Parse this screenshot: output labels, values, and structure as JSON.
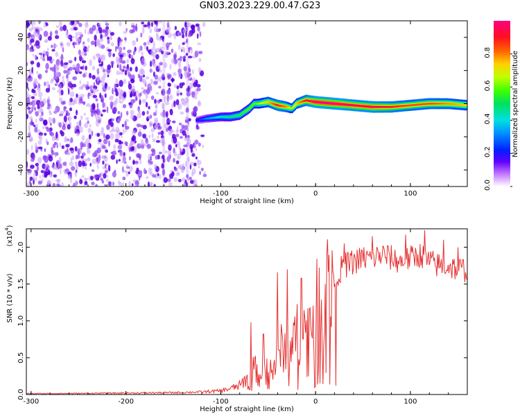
{
  "title": "GN03.2023.229.00.47.G23",
  "colors": {
    "snr_line": "#e53030",
    "axis": "#000000",
    "background": "#ffffff"
  },
  "chart_data": [
    {
      "type": "heatmap",
      "xlabel": "Height of straight line (km)",
      "ylabel": "Frequency (Hz)",
      "xlim": [
        -305,
        160
      ],
      "ylim": [
        -50,
        50
      ],
      "x_ticks": [
        -300,
        -200,
        -100,
        0,
        100
      ],
      "x_tick_labels": [
        "-300",
        "-200",
        "-100",
        "0",
        "100"
      ],
      "y_ticks": [
        -40,
        -20,
        0,
        20,
        40
      ],
      "y_tick_labels": [
        "-40",
        "-20",
        "0",
        "20",
        "40"
      ],
      "colorbar": {
        "label": "Normalized spectral amplitude",
        "range": [
          0,
          1
        ],
        "ticks": [
          0.0,
          0.2,
          0.4,
          0.6,
          0.8
        ],
        "tick_labels": [
          "0.0",
          "0.2",
          "0.4",
          "0.6",
          "0.8"
        ]
      },
      "noise_region_x": [
        -305,
        -115
      ],
      "ridge": {
        "x": [
          -125,
          -115,
          -100,
          -90,
          -80,
          -70,
          -65,
          -60,
          -50,
          -40,
          -30,
          -25,
          -20,
          -10,
          0,
          20,
          40,
          60,
          80,
          100,
          120,
          140,
          160
        ],
        "freq_hz": [
          -10,
          -9,
          -8,
          -8,
          -7,
          -3,
          0,
          0,
          1,
          -1,
          -2,
          -3,
          0,
          2,
          1,
          0,
          -1,
          -2,
          -2,
          -1,
          0,
          0,
          -1
        ],
        "amplitude": [
          0.2,
          0.3,
          0.4,
          0.45,
          0.5,
          0.55,
          0.55,
          0.6,
          0.7,
          0.85,
          0.75,
          0.6,
          0.7,
          0.85,
          0.95,
          0.95,
          0.9,
          0.9,
          0.85,
          0.8,
          0.8,
          0.75,
          0.7
        ]
      }
    },
    {
      "type": "line",
      "xlabel": "Height of straight line (km)",
      "ylabel": "SNR (10 * v/v)",
      "y_scale_label": "(x10",
      "y_scale_exponent": "4",
      "xlim": [
        -305,
        160
      ],
      "ylim": [
        0,
        22500
      ],
      "x_ticks": [
        -300,
        -200,
        -100,
        0,
        100
      ],
      "x_tick_labels": [
        "-300",
        "-200",
        "-100",
        "0",
        "100"
      ],
      "y_ticks": [
        0,
        5000,
        10000,
        15000,
        20000
      ],
      "y_tick_labels": [
        "0.0",
        "0.5",
        "1.0",
        "1.5",
        "2.0"
      ],
      "series": [
        {
          "x": [
            -305,
            -250,
            -200,
            -150,
            -120,
            -100,
            -90,
            -80,
            -70,
            -65,
            -60,
            -55,
            -50,
            -45,
            -40,
            -35,
            -30,
            -25,
            -20,
            -15,
            -10,
            -5,
            0,
            5,
            10,
            20,
            30,
            40,
            50,
            60,
            70,
            80,
            90,
            100,
            110,
            120,
            130,
            140,
            150,
            160
          ],
          "y": [
            120,
            150,
            200,
            250,
            350,
            500,
            800,
            1200,
            2500,
            4000,
            2000,
            3500,
            4500,
            3000,
            5500,
            6500,
            6000,
            7000,
            8000,
            9000,
            8500,
            10000,
            11500,
            13000,
            14500,
            16000,
            17500,
            18000,
            18500,
            18500,
            19000,
            18500,
            18000,
            18500,
            19000,
            18000,
            17500,
            17500,
            17000,
            17000
          ],
          "spikes": [
            {
              "x": -68,
              "y": 9800
            },
            {
              "x": -55,
              "y": 8200
            },
            {
              "x": -40,
              "y": 16600
            },
            {
              "x": -30,
              "y": 17000
            },
            {
              "x": -15,
              "y": 15800
            },
            {
              "x": 10,
              "y": 15000
            },
            {
              "x": 30,
              "y": 20500
            },
            {
              "x": 60,
              "y": 21500
            },
            {
              "x": 95,
              "y": 21700
            },
            {
              "x": 115,
              "y": 22300
            },
            {
              "x": 135,
              "y": 21000
            },
            {
              "x": 150,
              "y": 20000
            }
          ]
        }
      ]
    }
  ]
}
